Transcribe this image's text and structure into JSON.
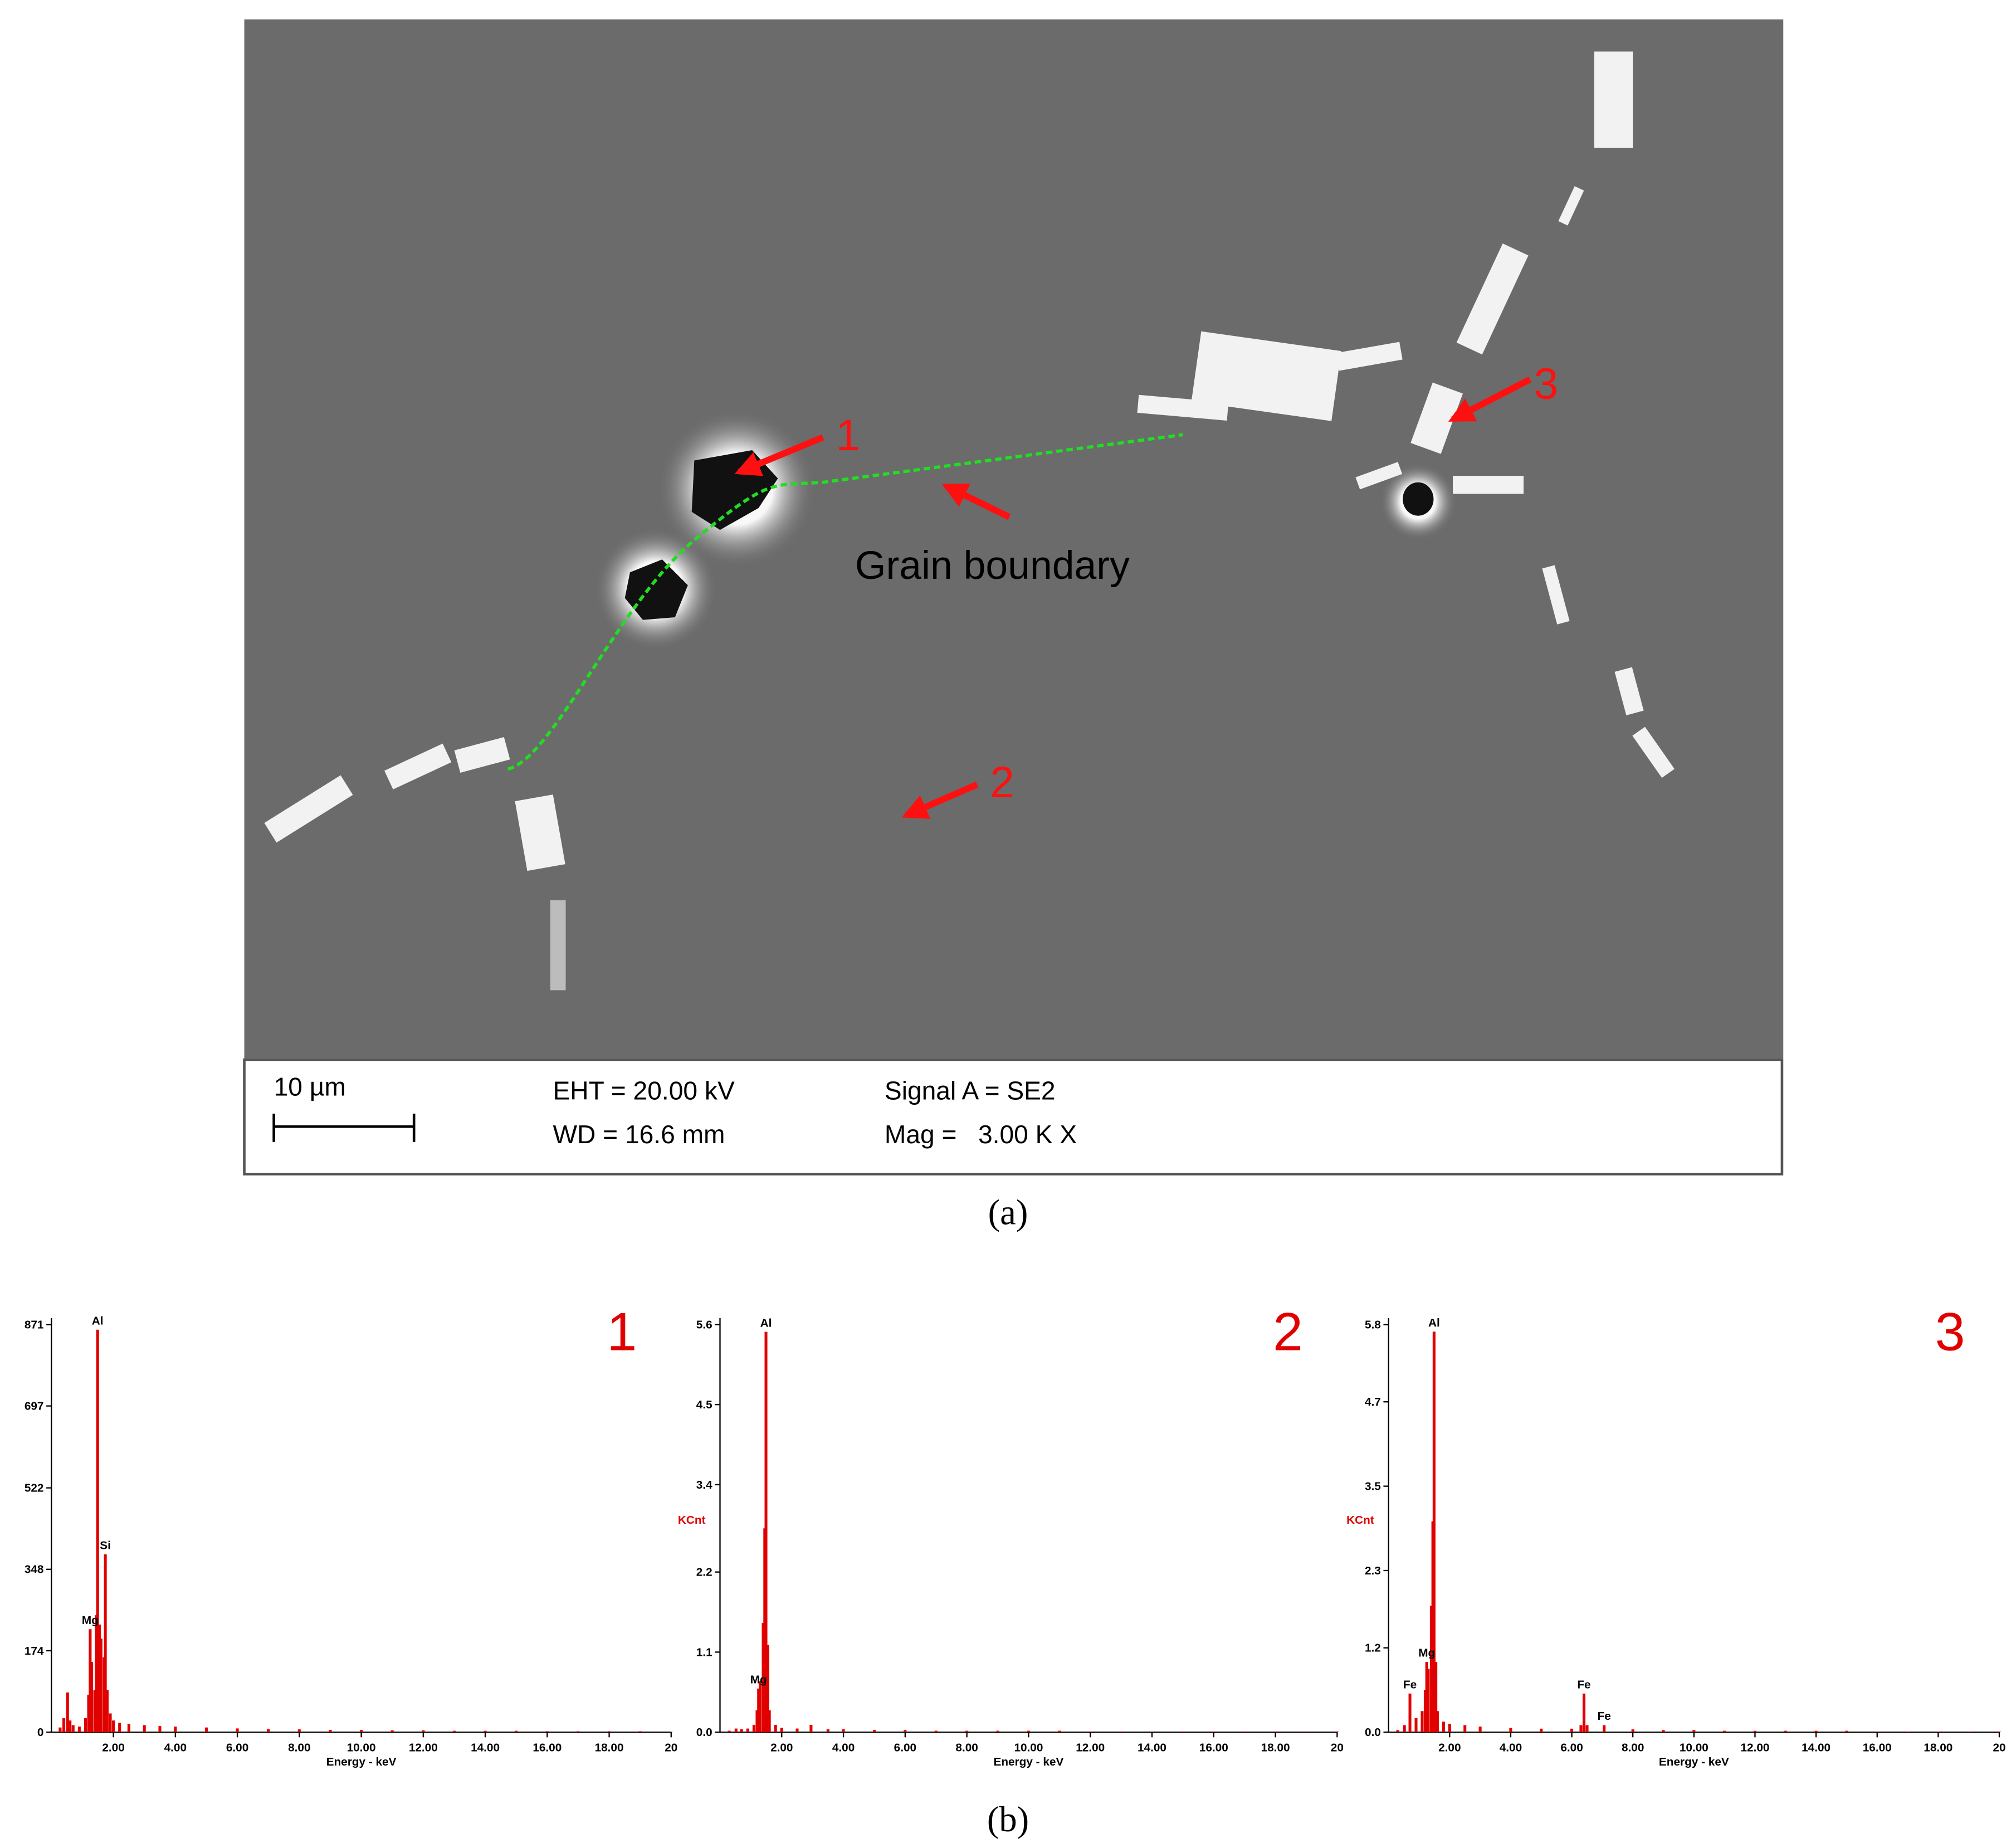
{
  "panel_a": {
    "labels": [
      "1",
      "2",
      "3"
    ],
    "grain_boundary": "Grain boundary",
    "scale_bar": "10 µm",
    "eht": "EHT = 20.00 kV",
    "wd": "WD = 16.6 mm",
    "signal": "Signal A = SE2",
    "mag": "Mag =   3.00 K X",
    "caption": "(a)"
  },
  "caption_b": "(b)",
  "chart_data": [
    {
      "type": "spectrum",
      "title": "1",
      "xlabel": "Energy - keV",
      "color": "#e00000",
      "xlim": [
        0,
        20
      ],
      "xticks": [
        {
          "value": 2,
          "label": "2.00"
        },
        {
          "value": 4,
          "label": "4.00"
        },
        {
          "value": 6,
          "label": "6.00"
        },
        {
          "value": 8,
          "label": "8.00"
        },
        {
          "value": 10,
          "label": "10.00"
        },
        {
          "value": 12,
          "label": "12.00"
        },
        {
          "value": 14,
          "label": "14.00"
        },
        {
          "value": 16,
          "label": "16.00"
        },
        {
          "value": 18,
          "label": "18.00"
        },
        20
      ],
      "ylim": [
        0,
        871
      ],
      "yticks": [
        0,
        174,
        348,
        522,
        697,
        871
      ],
      "x": [
        0.28,
        0.4,
        0.52,
        0.6,
        0.7,
        0.9,
        1.1,
        1.2,
        1.25,
        1.3,
        1.4,
        1.45,
        1.49,
        1.55,
        1.6,
        1.7,
        1.74,
        1.8,
        1.9,
        2.0,
        2.2,
        2.5,
        3.0,
        3.5,
        4.0,
        5,
        6,
        7,
        8,
        9,
        10,
        11,
        12,
        13,
        14,
        15,
        16,
        17,
        18,
        19,
        20
      ],
      "values": [
        10,
        30,
        85,
        25,
        15,
        12,
        30,
        80,
        220,
        150,
        90,
        250,
        860,
        230,
        200,
        160,
        380,
        90,
        40,
        25,
        20,
        18,
        15,
        13,
        12,
        10,
        8,
        7,
        6,
        5,
        5,
        4,
        4,
        3,
        3,
        3,
        2,
        2,
        2,
        2,
        1
      ],
      "peak_labels": [
        {
          "text": "Al",
          "x": 1.49
        },
        {
          "text": "Si",
          "x": 1.74
        },
        {
          "text": "Mg",
          "x": 1.25
        }
      ]
    },
    {
      "type": "spectrum",
      "title": "2",
      "xlabel": "Energy - keV",
      "ylabel": "KCnt",
      "color": "#e00000",
      "xlim": [
        0,
        20
      ],
      "xticks": [
        {
          "value": 2,
          "label": "2.00"
        },
        {
          "value": 4,
          "label": "4.00"
        },
        {
          "value": 6,
          "label": "6.00"
        },
        {
          "value": 8,
          "label": "8.00"
        },
        {
          "value": 10,
          "label": "10.00"
        },
        {
          "value": 12,
          "label": "12.00"
        },
        {
          "value": 14,
          "label": "14.00"
        },
        {
          "value": 16,
          "label": "16.00"
        },
        {
          "value": 18,
          "label": "18.00"
        },
        20
      ],
      "ylim": [
        0,
        5.6
      ],
      "yticks": [
        {
          "value": 0,
          "label": "0.0"
        },
        1.1,
        2.2,
        3.4,
        4.5,
        5.6
      ],
      "x": [
        0.3,
        0.52,
        0.7,
        0.9,
        1.1,
        1.2,
        1.25,
        1.3,
        1.4,
        1.45,
        1.49,
        1.55,
        1.6,
        1.8,
        2.0,
        2.5,
        2.95,
        3.5,
        4,
        5,
        6,
        7,
        8,
        9,
        10,
        11,
        12,
        13,
        14,
        15,
        16,
        17,
        18,
        19,
        20
      ],
      "values": [
        0.02,
        0.05,
        0.04,
        0.05,
        0.1,
        0.3,
        0.6,
        0.7,
        1.5,
        2.8,
        5.5,
        1.2,
        0.3,
        0.1,
        0.06,
        0.05,
        0.1,
        0.04,
        0.04,
        0.03,
        0.03,
        0.02,
        0.02,
        0.02,
        0.02,
        0.02,
        0.01,
        0.01,
        0.01,
        0.01,
        0.01,
        0.01,
        0.01,
        0.01,
        0.01
      ],
      "peak_labels": [
        {
          "text": "Al",
          "x": 1.49
        },
        {
          "text": "Mg",
          "x": 1.25
        }
      ]
    },
    {
      "type": "spectrum",
      "title": "3",
      "xlabel": "Energy - keV",
      "ylabel": "KCnt",
      "color": "#e00000",
      "xlim": [
        0,
        20
      ],
      "xticks": [
        {
          "value": 2,
          "label": "2.00"
        },
        {
          "value": 4,
          "label": "4.00"
        },
        {
          "value": 6,
          "label": "6.00"
        },
        {
          "value": 8,
          "label": "8.00"
        },
        {
          "value": 10,
          "label": "10.00"
        },
        {
          "value": 12,
          "label": "12.00"
        },
        {
          "value": 14,
          "label": "14.00"
        },
        {
          "value": 16,
          "label": "16.00"
        },
        {
          "value": 18,
          "label": "18.00"
        },
        20
      ],
      "ylim": [
        0,
        5.8
      ],
      "yticks": [
        {
          "value": 0,
          "label": "0.0"
        },
        1.2,
        2.3,
        3.5,
        4.7,
        5.8
      ],
      "x": [
        0.3,
        0.52,
        0.7,
        0.9,
        1.1,
        1.2,
        1.25,
        1.3,
        1.4,
        1.45,
        1.49,
        1.55,
        1.6,
        1.8,
        2.0,
        2.5,
        3.0,
        4.0,
        5.0,
        6.0,
        6.3,
        6.4,
        6.5,
        7.06,
        8,
        9,
        10,
        11,
        12,
        13,
        14,
        15,
        16,
        17,
        18,
        19,
        20
      ],
      "values": [
        0.03,
        0.1,
        0.55,
        0.2,
        0.3,
        0.6,
        1.0,
        0.9,
        1.8,
        3.0,
        5.7,
        1.0,
        0.3,
        0.15,
        0.12,
        0.1,
        0.08,
        0.06,
        0.05,
        0.05,
        0.1,
        0.55,
        0.1,
        0.1,
        0.04,
        0.03,
        0.03,
        0.02,
        0.02,
        0.02,
        0.02,
        0.02,
        0.01,
        0.01,
        0.01,
        0.01,
        0.01
      ],
      "peak_labels": [
        {
          "text": "Fe",
          "x": 0.7
        },
        {
          "text": "Mg",
          "x": 1.25
        },
        {
          "text": "Al",
          "x": 1.49
        },
        {
          "text": "Fe",
          "x": 6.4
        },
        {
          "text": "Fe",
          "x": 7.06
        }
      ]
    }
  ]
}
